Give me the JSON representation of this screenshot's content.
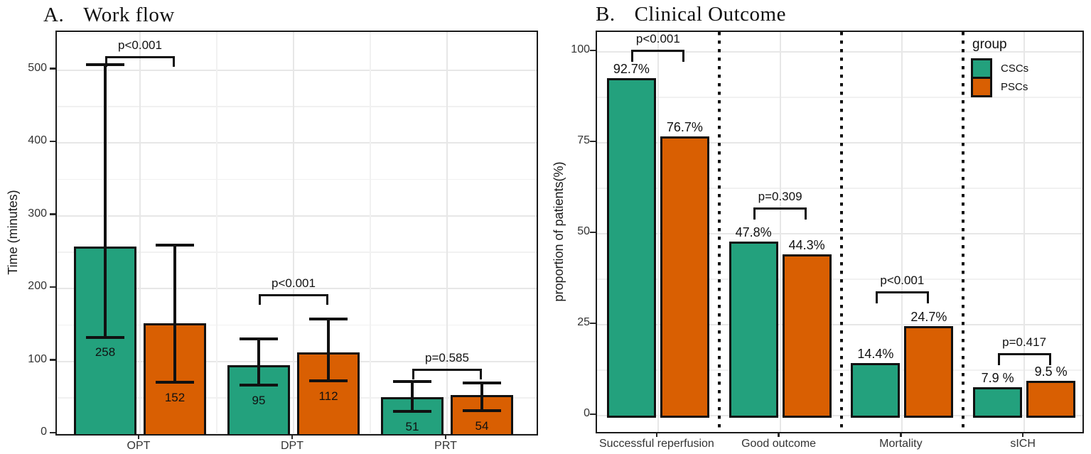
{
  "chart_data": [
    {
      "panel": "A",
      "type": "bar",
      "panel_label": "A.",
      "title": "Work flow",
      "ylabel": "Time (minutes)",
      "ylim": [
        0,
        552
      ],
      "yticks": [
        0,
        100,
        200,
        300,
        400,
        500
      ],
      "grid": true,
      "legend_position": "none",
      "categories": [
        "OPT",
        "DPT",
        "PRT"
      ],
      "series": [
        {
          "name": "CSCs",
          "values": [
            258,
            95,
            51
          ],
          "err_low": [
            133,
            67,
            31
          ],
          "err_high": [
            507,
            131,
            72
          ]
        },
        {
          "name": "PSCs",
          "values": [
            152,
            112,
            54
          ],
          "err_low": [
            71,
            73,
            32
          ],
          "err_high": [
            260,
            158,
            70
          ]
        }
      ],
      "significance": [
        {
          "category": "OPT",
          "p_label": "p<0.001",
          "bracket_y": 519
        },
        {
          "category": "DPT",
          "p_label": "p<0.001",
          "bracket_y": 192
        },
        {
          "category": "PRT",
          "p_label": "p=0.585",
          "bracket_y": 90
        }
      ]
    },
    {
      "panel": "B",
      "type": "bar",
      "panel_label": "B.",
      "title": "Clinical Outcome",
      "ylabel": "proportion of patients(%)",
      "ylim": [
        0,
        105
      ],
      "yticks": [
        0,
        25,
        50,
        75,
        100
      ],
      "grid": true,
      "legend_position": "top-right",
      "categories": [
        "Successful reperfusion",
        "Good outcome",
        "Mortality",
        "sICH"
      ],
      "series": [
        {
          "name": "CSCs",
          "values": [
            92.7,
            47.8,
            14.4,
            7.9
          ],
          "labels": [
            "92.7%",
            "47.8%",
            "14.4%",
            "7.9 %"
          ]
        },
        {
          "name": "PSCs",
          "values": [
            76.7,
            44.3,
            24.7,
            9.5
          ],
          "labels": [
            "76.7%",
            "44.3%",
            "24.7%",
            "9.5 %"
          ]
        }
      ],
      "significance": [
        {
          "category": "Successful reperfusion",
          "p_label": "p<0.001",
          "bracket_y": 100.5
        },
        {
          "category": "Good outcome",
          "p_label": "p=0.309",
          "bracket_y": 57.2
        },
        {
          "category": "Mortality",
          "p_label": "p<0.001",
          "bracket_y": 34.2
        },
        {
          "category": "sICH",
          "p_label": "p=0.417",
          "bracket_y": 17.2
        }
      ],
      "legend": {
        "title": "group",
        "items": [
          {
            "label": "CSCs"
          },
          {
            "label": "PSCs"
          }
        ]
      }
    }
  ],
  "colors": {
    "CSCs": "#23a17d",
    "PSCs": "#d95f02",
    "ink": "#111111",
    "tick": "#2a2a2a",
    "grid_major": "#e7e7e7",
    "grid_minor": "#f1f1f1",
    "border": "#1a1a1a"
  }
}
